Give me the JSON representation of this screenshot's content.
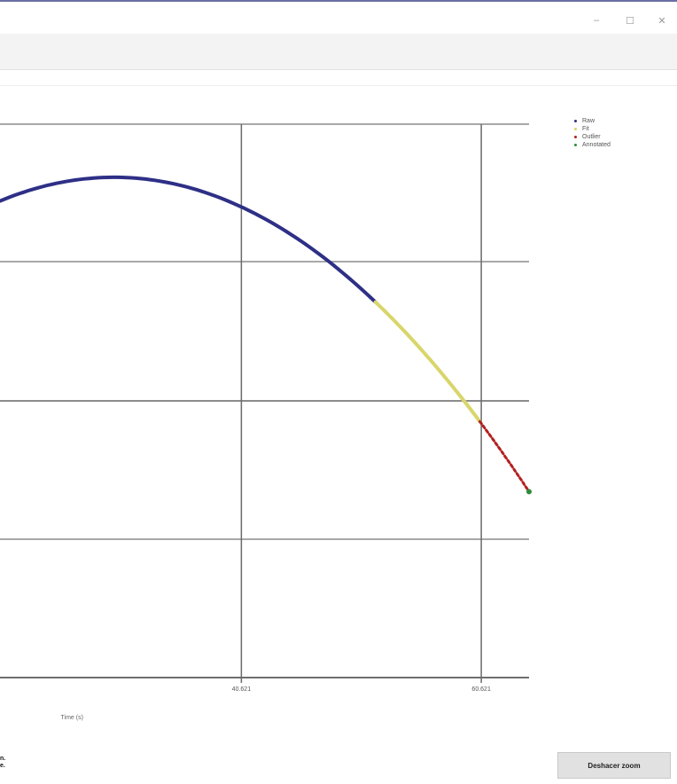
{
  "window": {
    "controls": [
      "–",
      "☐",
      "✕"
    ]
  },
  "legend": [
    {
      "label": "Raw",
      "color": "#2e2f86"
    },
    {
      "label": "Fit",
      "color": "#d8d66a"
    },
    {
      "label": "Outlier",
      "color": "#b32020"
    },
    {
      "label": "Annotated",
      "color": "#2e8b3a"
    }
  ],
  "footnote": {
    "line1": "n.",
    "line2": "e."
  },
  "button": {
    "label": "Deshacer zoom"
  },
  "chart_data": {
    "type": "line",
    "xlabel": "Time (s)",
    "x_ticks": [
      "40.621",
      "60.621"
    ],
    "series": [
      {
        "name": "Raw",
        "color": "#2e2f86",
        "x_from": 20.5,
        "x_to": 51.8
      },
      {
        "name": "Fit",
        "color": "#d8d66a",
        "x_from": 51.8,
        "x_to": 60.5
      },
      {
        "name": "Outlier",
        "color": "#b32020",
        "x_from": 60.5,
        "x_to": 64.6
      },
      {
        "name": "Annotated",
        "color": "#2e8b3a",
        "x_from": 64.6,
        "x_to": 64.6
      }
    ],
    "curve": {
      "peak_x": 30.0,
      "peak_y": 0.88,
      "end_x": 64.6,
      "end_y": 0.17
    },
    "xlim": [
      20.5,
      64.6
    ],
    "ylim": [
      -0.25,
      1.0
    ],
    "grid": true,
    "legend_position": "top-right"
  }
}
